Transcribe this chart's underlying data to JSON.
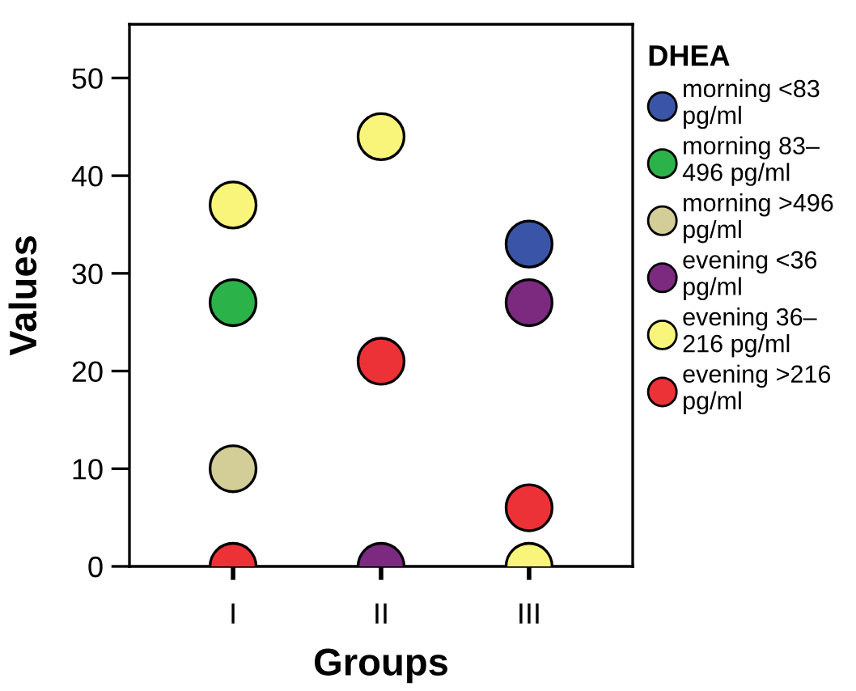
{
  "chart_data": {
    "type": "scatter",
    "xlabel": "Groups",
    "ylabel": "Values",
    "legend_title": "DHEA",
    "categories": [
      "I",
      "II",
      "III"
    ],
    "series": [
      {
        "name": "morning <83 pg/ml",
        "color": "#3a55a8",
        "values": [
          null,
          null,
          33
        ]
      },
      {
        "name": "morning 83–496 pg/ml",
        "color": "#2bb34a",
        "values": [
          27,
          null,
          null
        ]
      },
      {
        "name": "morning >496 pg/ml",
        "color": "#d3cd97",
        "values": [
          10,
          null,
          null
        ]
      },
      {
        "name": "evening <36 pg/ml",
        "color": "#7b2a80",
        "values": [
          null,
          0,
          27
        ]
      },
      {
        "name": "evening 36–216 pg/ml",
        "color": "#f9f57a",
        "values": [
          37,
          44,
          0
        ]
      },
      {
        "name": "evening >216 pg/ml",
        "color": "#ed3237",
        "values": [
          0,
          21,
          6
        ]
      }
    ],
    "ylim": [
      0,
      55.5
    ],
    "yticks": [
      0,
      10,
      20,
      30,
      40,
      50
    ],
    "grid": false,
    "legend": "right",
    "marker": "circle"
  }
}
